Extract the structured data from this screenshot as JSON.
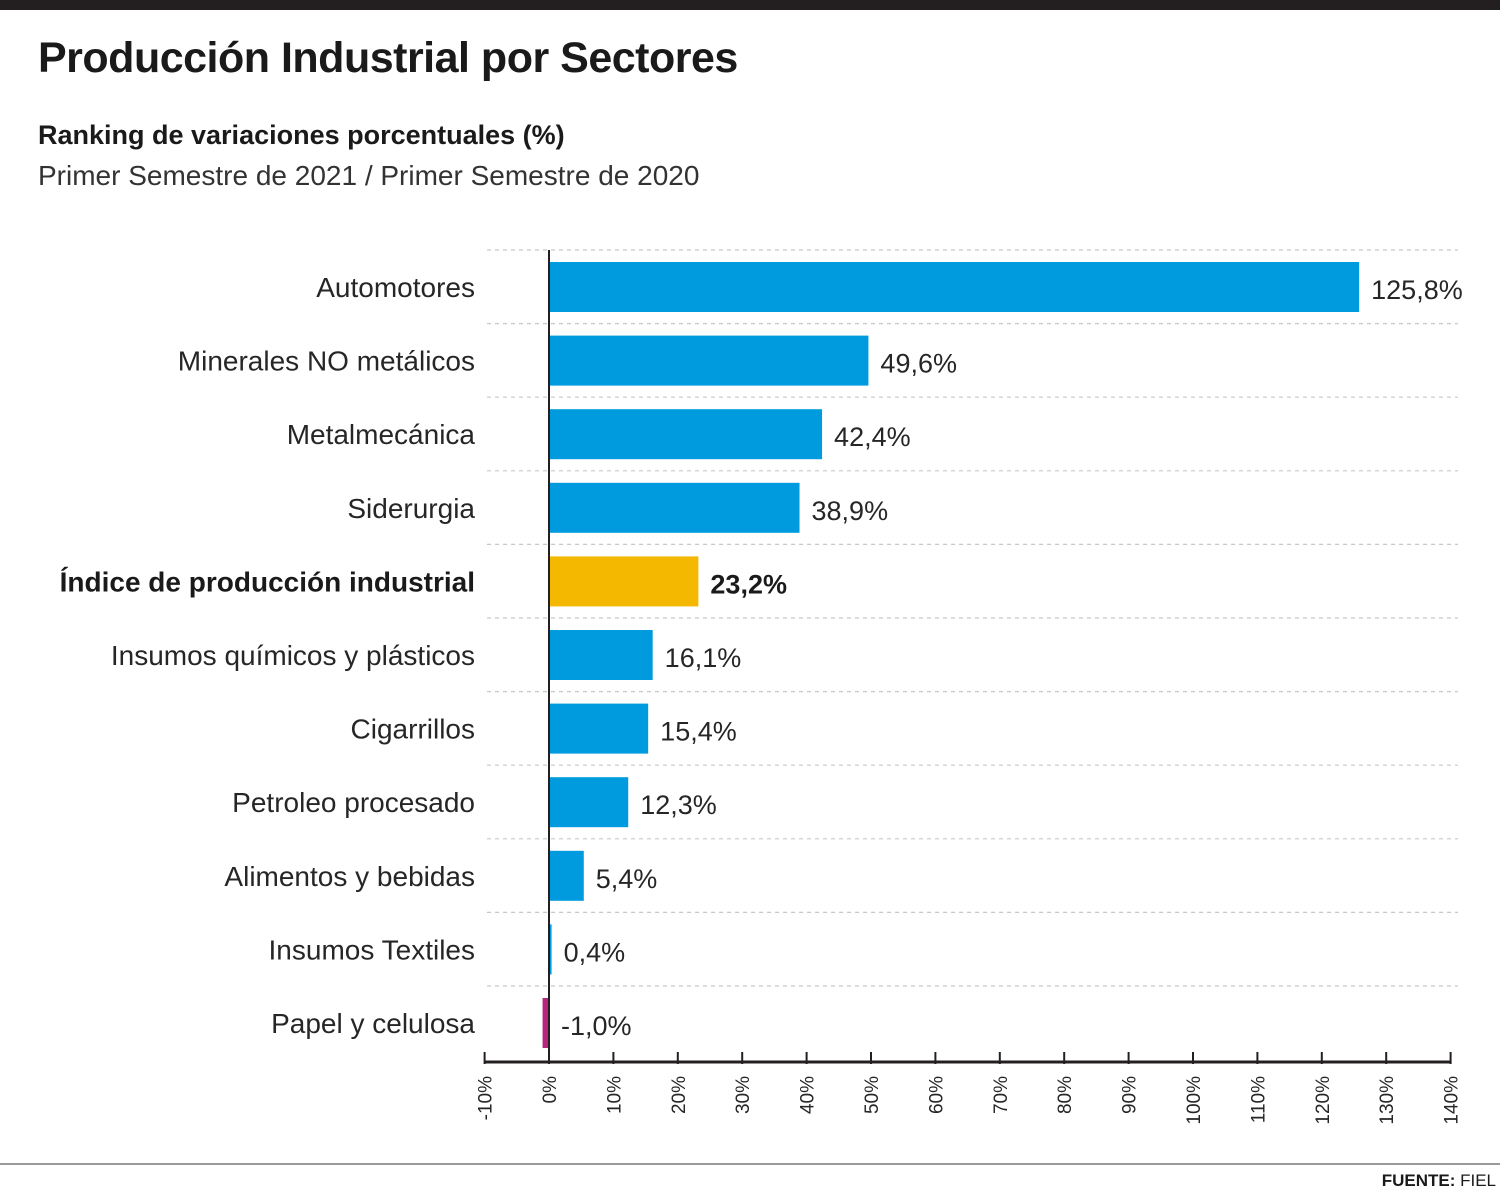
{
  "header": {
    "title": "Producción Industrial por Sectores",
    "subtitle": "Ranking de variaciones porcentuales (%)",
    "period": "Primer Semestre de 2021 / Primer Semestre de 2020"
  },
  "footer": {
    "source_label": "FUENTE:",
    "source_value": "FIEL"
  },
  "colors": {
    "bar": "#009bde",
    "highlight": "#f5b800",
    "negative": "#b5267e",
    "axis": "#231f20",
    "grid": "#c8c8c8"
  },
  "chart_data": {
    "type": "bar",
    "orientation": "horizontal",
    "title": "Producción Industrial por Sectores",
    "subtitle": "Ranking de variaciones porcentuales (%)",
    "xlabel": "",
    "ylabel": "",
    "xlim": [
      -10,
      140
    ],
    "grid": true,
    "categories": [
      "Automotores",
      "Minerales NO metálicos",
      "Metalmecánica",
      "Siderurgia",
      "Índice de producción industrial",
      "Insumos químicos y plásticos",
      "Cigarrillos",
      "Petroleo procesado",
      "Alimentos y bebidas",
      "Insumos Textiles",
      "Papel y celulosa"
    ],
    "values": [
      125.8,
      49.6,
      42.4,
      38.9,
      23.2,
      16.1,
      15.4,
      12.3,
      5.4,
      0.4,
      -1.0
    ],
    "value_labels": [
      "125,8%",
      "49,6%",
      "42,4%",
      "38,9%",
      "23,2%",
      "16,1%",
      "15,4%",
      "12,3%",
      "5,4%",
      "0,4%",
      "-1,0%"
    ],
    "highlight": [
      "Índice de producción industrial"
    ],
    "ticks": [
      -10,
      0,
      10,
      20,
      30,
      40,
      50,
      60,
      70,
      80,
      90,
      100,
      110,
      120,
      130,
      140
    ],
    "tick_labels": [
      "-10%",
      "0%",
      "10%",
      "20%",
      "30%",
      "40%",
      "50%",
      "60%",
      "70%",
      "80%",
      "90%",
      "100%",
      "110%",
      "120%",
      "130%",
      "140%"
    ]
  }
}
